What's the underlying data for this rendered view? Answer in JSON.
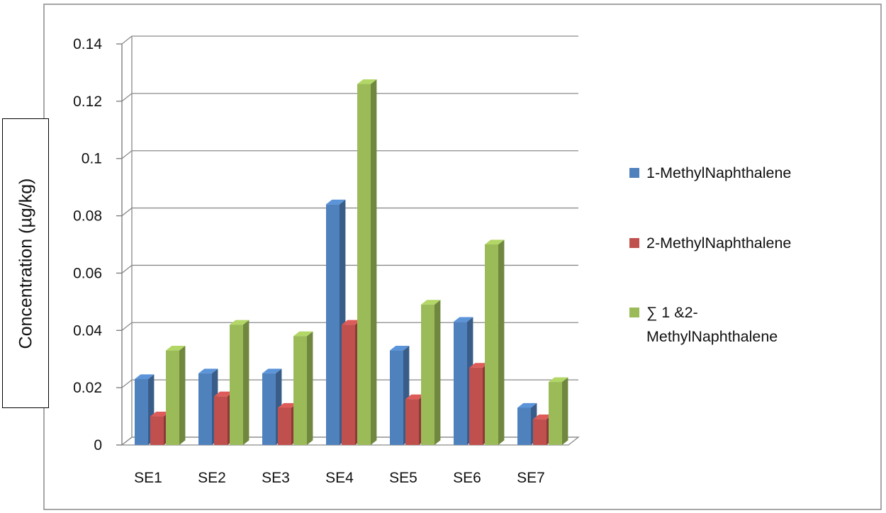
{
  "chart_data": {
    "type": "bar",
    "categories": [
      "SE1",
      "SE2",
      "SE3",
      "SE4",
      "SE5",
      "SE6",
      "SE7"
    ],
    "series": [
      {
        "name": "1-MethylNaphthalene",
        "color": "#4F81BD",
        "values": [
          0.023,
          0.025,
          0.025,
          0.084,
          0.033,
          0.043,
          0.013
        ]
      },
      {
        "name": "2-MethylNaphthalene",
        "color": "#C0504D",
        "values": [
          0.01,
          0.017,
          0.013,
          0.042,
          0.016,
          0.027,
          0.009
        ]
      },
      {
        "name": "∑ 1 &2-\nMethylNaphthalene",
        "color": "#9BBB59",
        "values": [
          0.033,
          0.042,
          0.038,
          0.126,
          0.049,
          0.07,
          0.022
        ]
      }
    ],
    "ylabel": "Concentration (µg/kg)",
    "xlabel": "",
    "ylim": [
      0,
      0.14
    ],
    "yticks": [
      "0",
      "0.02",
      "0.04",
      "0.06",
      "0.08",
      "0.1",
      "0.12",
      "0.14"
    ],
    "grid": true,
    "legend_position": "right"
  }
}
